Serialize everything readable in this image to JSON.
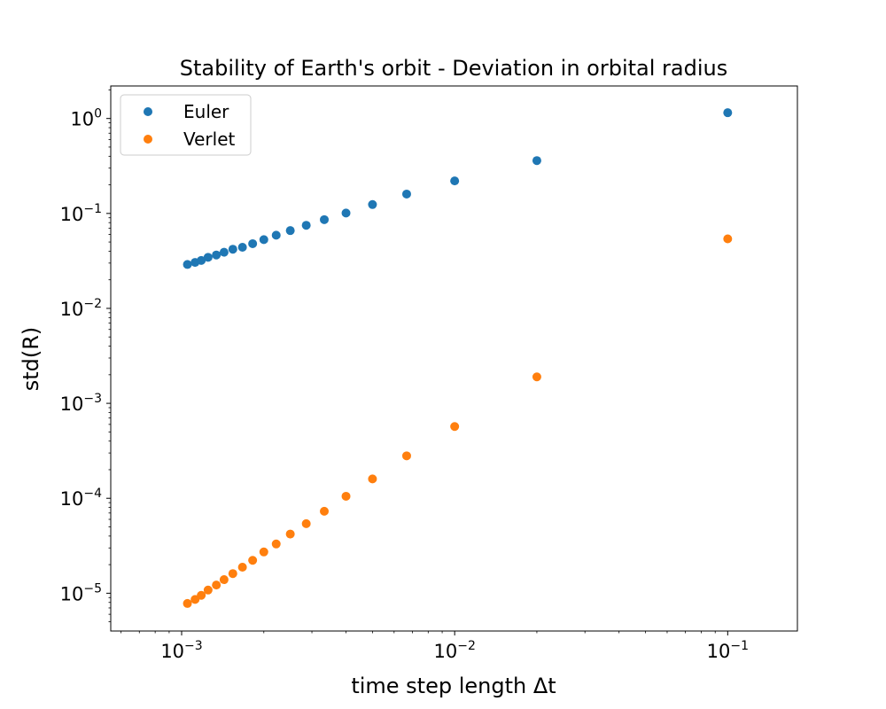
{
  "chart_data": {
    "type": "scatter",
    "title": "Stability of Earth's orbit - Deviation in orbital radius",
    "xlabel": "time step length Δt",
    "ylabel": "std(R)",
    "x_scale": "log",
    "y_scale": "log",
    "xlim": [
      0.00055,
      0.18
    ],
    "ylim": [
      4e-06,
      2.2
    ],
    "x_ticks": [
      {
        "value": 0.001,
        "base": "10",
        "exp": "−3"
      },
      {
        "value": 0.01,
        "base": "10",
        "exp": "−2"
      },
      {
        "value": 0.1,
        "base": "10",
        "exp": "−1"
      }
    ],
    "y_ticks": [
      {
        "value": 1e-05,
        "base": "10",
        "exp": "−5"
      },
      {
        "value": 0.0001,
        "base": "10",
        "exp": "−4"
      },
      {
        "value": 0.001,
        "base": "10",
        "exp": "−3"
      },
      {
        "value": 0.01,
        "base": "10",
        "exp": "−2"
      },
      {
        "value": 0.1,
        "base": "10",
        "exp": "−1"
      },
      {
        "value": 1,
        "base": "10",
        "exp": "0"
      }
    ],
    "grid": false,
    "legend_position": "top-left",
    "series": [
      {
        "name": "Euler",
        "color": "#1f77b4",
        "points": [
          [
            0.00105,
            0.029
          ],
          [
            0.00112,
            0.0305
          ],
          [
            0.00118,
            0.032
          ],
          [
            0.00125,
            0.0345
          ],
          [
            0.00134,
            0.0365
          ],
          [
            0.00143,
            0.039
          ],
          [
            0.00154,
            0.042
          ],
          [
            0.00167,
            0.044
          ],
          [
            0.00182,
            0.048
          ],
          [
            0.002,
            0.053
          ],
          [
            0.00222,
            0.059
          ],
          [
            0.0025,
            0.066
          ],
          [
            0.00286,
            0.075
          ],
          [
            0.00333,
            0.086
          ],
          [
            0.004,
            0.101
          ],
          [
            0.005,
            0.124
          ],
          [
            0.00667,
            0.16
          ],
          [
            0.01,
            0.22
          ],
          [
            0.02,
            0.36
          ],
          [
            0.1,
            1.15
          ]
        ]
      },
      {
        "name": "Verlet",
        "color": "#ff7f0e",
        "points": [
          [
            0.00105,
            7.8e-06
          ],
          [
            0.00112,
            8.6e-06
          ],
          [
            0.00118,
            9.5e-06
          ],
          [
            0.00125,
            1.08e-05
          ],
          [
            0.00134,
            1.22e-05
          ],
          [
            0.00143,
            1.39e-05
          ],
          [
            0.00154,
            1.61e-05
          ],
          [
            0.00167,
            1.88e-05
          ],
          [
            0.00182,
            2.22e-05
          ],
          [
            0.002,
            2.72e-05
          ],
          [
            0.00222,
            3.3e-05
          ],
          [
            0.0025,
            4.2e-05
          ],
          [
            0.00286,
            5.4e-05
          ],
          [
            0.00333,
            7.3e-05
          ],
          [
            0.004,
            0.000105
          ],
          [
            0.005,
            0.00016
          ],
          [
            0.00667,
            0.00028
          ],
          [
            0.01,
            0.00057
          ],
          [
            0.02,
            0.0019
          ],
          [
            0.1,
            0.054
          ]
        ]
      }
    ]
  }
}
